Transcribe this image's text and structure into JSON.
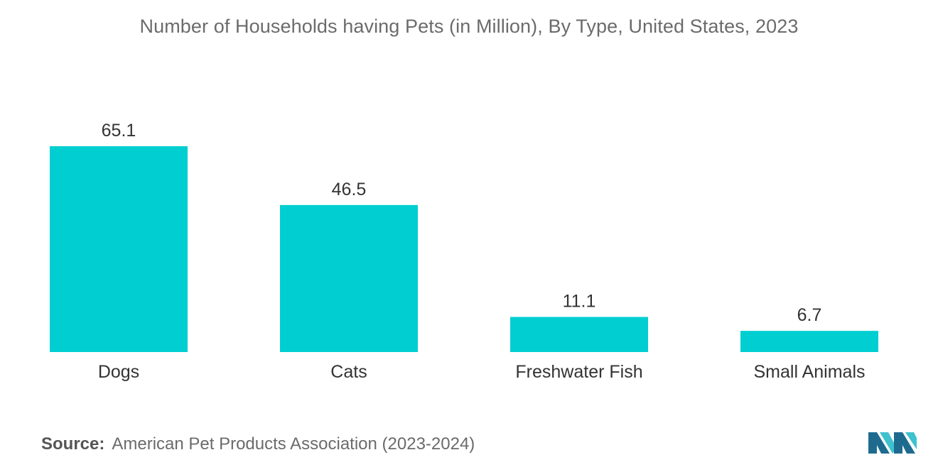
{
  "chart_data": {
    "type": "bar",
    "title": "Number of Households having Pets (in Million), By Type, United States, 2023",
    "categories": [
      "Dogs",
      "Cats",
      "Freshwater Fish",
      "Small Animals"
    ],
    "values": [
      65.1,
      46.5,
      11.1,
      6.7
    ],
    "value_labels": [
      "65.1",
      "46.5",
      "11.1",
      "6.7"
    ],
    "xlabel": "",
    "ylabel": "",
    "ylim": [
      0,
      65.1
    ],
    "grid": false,
    "bar_color": "#00ced1"
  },
  "source": {
    "label": "Source:",
    "text": "American Pet Products Association (2023-2024)"
  },
  "logo": {
    "icon": "mordor-intelligence-logo-icon",
    "colors": [
      "#1f6b8f",
      "#3fc1cf"
    ]
  }
}
